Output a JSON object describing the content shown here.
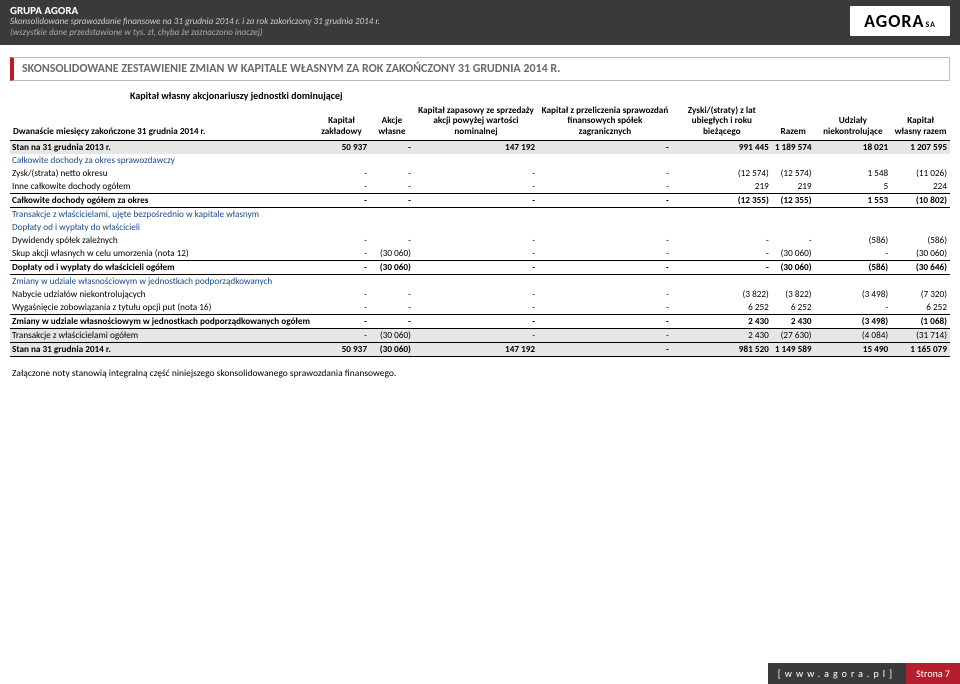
{
  "header": {
    "company": "GRUPA AGORA",
    "line1": "Skonsolidowane sprawozdanie finansowe na 31 grudnia 2014 r. i za rok zakończony 31 grudnia 2014 r.",
    "line2": "(wszystkie dane przedstawione w tys. zł, chyba że zaznaczono inaczej)",
    "logo": "AGORA",
    "logo_sa": "SA"
  },
  "title": "SKONSOLIDOWANE ZESTAWIENIE ZMIAN W KAPITALE WŁASNYM ZA ROK ZAKOŃCZONY 31 GRUDNIA 2014 R.",
  "super_header": "Kapitał własny akcjonariuszy jednostki dominującej",
  "columns": {
    "c0": "Dwanaście miesięcy zakończone 31 grudnia 2014 r.",
    "c1": "Kapitał zakładowy",
    "c2": "Akcje własne",
    "c3": "Kapitał zapasowy ze sprzedaży akcji powyżej wartości nominalnej",
    "c4": "Kapitał z przeliczenia sprawozdań finansowych spółek zagranicznych",
    "c5": "Zyski/(straty) z lat ubiegłych i roku bieżącego",
    "c6": "Razem",
    "c7": "Udziały niekontrolujące",
    "c8": "Kapitał własny razem"
  },
  "rows": [
    {
      "type": "data",
      "bold": true,
      "shade": true,
      "label": "Stan na 31 grudnia 2013 r.",
      "v": [
        "50 937",
        "-",
        "147 192",
        "-",
        "991 445",
        "1 189 574",
        "18 021",
        "1 207 595"
      ]
    },
    {
      "type": "section",
      "label": "Całkowite dochody za okres sprawozdawczy"
    },
    {
      "type": "data",
      "label": "Zysk/(strata) netto okresu",
      "v": [
        "-",
        "-",
        "-",
        "-",
        "(12 574)",
        "(12 574)",
        "1 548",
        "(11 026)"
      ]
    },
    {
      "type": "data",
      "label": "Inne całkowite dochody ogółem",
      "v": [
        "-",
        "-",
        "-",
        "-",
        "219",
        "219",
        "5",
        "224"
      ]
    },
    {
      "type": "data",
      "bold": true,
      "borderTop": true,
      "borderBottom": true,
      "label": "Całkowite dochody ogółem  za okres",
      "v": [
        "-",
        "-",
        "-",
        "-",
        "(12 355)",
        "(12 355)",
        "1 553",
        "(10 802)"
      ]
    },
    {
      "type": "section",
      "label": "Transakcje z właścicielami, ujęte bezpośrednio w kapitale własnym"
    },
    {
      "type": "section",
      "label": "Dopłaty od i wypłaty do właścicieli"
    },
    {
      "type": "data",
      "label": "Dywidendy spółek zależnych",
      "v": [
        "-",
        "-",
        "-",
        "-",
        "-",
        "-",
        "(586)",
        "(586)"
      ]
    },
    {
      "type": "data",
      "label": "Skup akcji własnych w celu umorzenia (nota 12)",
      "v": [
        "-",
        "(30 060)",
        "-",
        "-",
        "-",
        "(30 060)",
        "-",
        "(30 060)"
      ]
    },
    {
      "type": "data",
      "bold": true,
      "borderTop": true,
      "borderBottom": true,
      "label": "Dopłaty od i wypłaty do właścicieli ogółem",
      "v": [
        "-",
        "(30 060)",
        "-",
        "-",
        "-",
        "(30 060)",
        "(586)",
        "(30 646)"
      ]
    },
    {
      "type": "section",
      "label": "Zmiany w udziale własnościowym w jednostkach podporządkowanych"
    },
    {
      "type": "data",
      "label": "Nabycie udziałów niekontrolujących",
      "v": [
        "-",
        "-",
        "-",
        "-",
        "(3 822)",
        "(3 822)",
        "(3 498)",
        "(7 320)"
      ]
    },
    {
      "type": "data",
      "label": "Wygaśnięcie zobowiązania z tytułu opcji put (nota 16)",
      "v": [
        "-",
        "-",
        "-",
        "-",
        "6 252",
        "6 252",
        "-",
        "6 252"
      ]
    },
    {
      "type": "data",
      "bold": true,
      "borderTop": true,
      "borderBottom": true,
      "label": "Zmiany w udziale własnościowym w jednostkach podporządkowanych ogółem",
      "v": [
        "-",
        "-",
        "-",
        "-",
        "2 430",
        "2 430",
        "(3 498)",
        "(1 068)"
      ]
    },
    {
      "type": "data",
      "shade": true,
      "borderBottom": true,
      "label": "Transakcje z właścicielami ogółem",
      "v": [
        "-",
        "(30 060)",
        "-",
        "-",
        "2 430",
        "(27 630)",
        "(4 084)",
        "(31 714)"
      ]
    },
    {
      "type": "data",
      "bold": true,
      "shade": true,
      "borderBottom": true,
      "label": "Stan na 31 grudnia 2014 r.",
      "v": [
        "50 937",
        "(30 060)",
        "147 192",
        "-",
        "981 520",
        "1 149 589",
        "15 490",
        "1 165 079"
      ]
    }
  ],
  "footnote": "Załączone noty stanowią integralną część niniejszego skonsolidowanego sprawozdania finansowego.",
  "footer": {
    "url": "[www.agora.pl]",
    "page": "Strona 7"
  },
  "style": {
    "accent": "#b51e2e",
    "header_bg": "#3a3a3a",
    "shade_bg": "#e6e6e6",
    "section_color": "#1a4b8c"
  }
}
